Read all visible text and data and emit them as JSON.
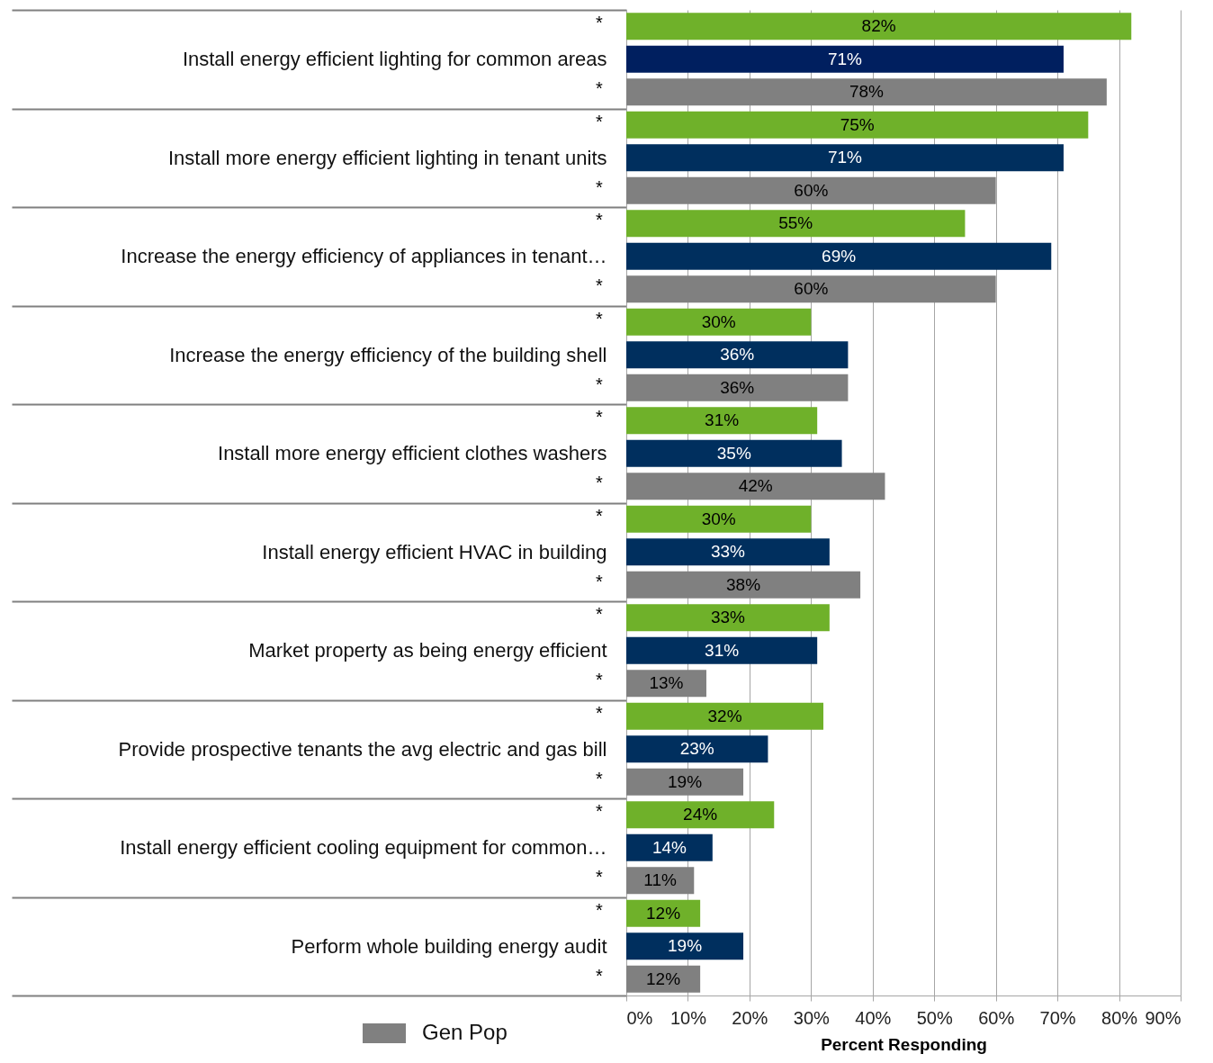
{
  "chart_data": {
    "type": "bar",
    "orientation": "horizontal",
    "categories": [
      "Install energy efficient lighting for common areas",
      "Install more energy efficient lighting in tenant units",
      "Increase the energy efficiency of appliances in tenant…",
      "Increase the energy efficiency of the building shell",
      "Install more energy efficient clothes washers",
      "Install energy efficient HVAC in building",
      "Market property as being energy efficient",
      "Provide prospective tenants the avg electric and gas bill",
      "Install energy efficient cooling equipment for common…",
      "Perform whole building energy audit"
    ],
    "series": [
      {
        "color": "#6fb12a",
        "values": [
          82,
          75,
          55,
          30,
          31,
          30,
          33,
          32,
          24,
          12
        ],
        "value_labels": [
          "82%",
          "75%",
          "55%",
          "30%",
          "31%",
          "30%",
          "33%",
          "32%",
          "24%",
          "12%"
        ]
      },
      {
        "colors": [
          "#001f5f",
          "#002f5e",
          "#002f5e",
          "#002f5e",
          "#002f5e",
          "#002f5e",
          "#002f5e",
          "#002f5e",
          "#002f5e",
          "#002f5e"
        ],
        "values": [
          71,
          71,
          69,
          36,
          35,
          33,
          31,
          23,
          14,
          19
        ],
        "value_labels": [
          "71%",
          "71%",
          "69%",
          "36%",
          "35%",
          "33%",
          "31%",
          "23%",
          "14%",
          "19%"
        ]
      },
      {
        "name": "Gen Pop",
        "color": "#808080",
        "values": [
          78,
          60,
          60,
          36,
          42,
          38,
          13,
          19,
          11,
          12
        ],
        "value_labels": [
          "78%",
          "60%",
          "60%",
          "36%",
          "42%",
          "38%",
          "13%",
          "19%",
          "11%",
          "12%"
        ]
      }
    ],
    "xlabel": "Percent Responding",
    "xlim": [
      0,
      90
    ],
    "xticks": [
      {
        "value": 0,
        "label": "0%"
      },
      {
        "value": 10,
        "label": "10%"
      },
      {
        "value": 20,
        "label": "20%"
      },
      {
        "value": 30,
        "label": "30%"
      },
      {
        "value": 40,
        "label": "40%"
      },
      {
        "value": 50,
        "label": "50%"
      },
      {
        "value": 60,
        "label": "60%"
      },
      {
        "value": 70,
        "label": "70%"
      },
      {
        "value": 80,
        "label": "80%"
      },
      {
        "value": 90,
        "label": "90%"
      }
    ],
    "grid": "x",
    "legend": "bottom left",
    "annotations": [
      "*",
      "*",
      "*",
      "*",
      "*",
      "*",
      "*",
      "*",
      "*",
      "*",
      "*",
      "*",
      "*",
      "*",
      "*",
      "*",
      "*",
      "*",
      "*",
      "*"
    ]
  }
}
